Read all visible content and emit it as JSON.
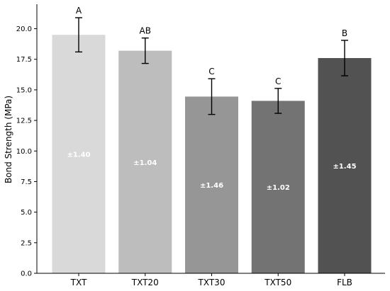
{
  "chart_data": {
    "type": "bar",
    "title": "",
    "xlabel": "",
    "ylabel": "Bond Strength (MPa)",
    "ylim": [
      0,
      22
    ],
    "yticks": [
      0.0,
      2.5,
      5.0,
      7.5,
      10.0,
      12.5,
      15.0,
      17.5,
      20.0
    ],
    "ytick_labels": [
      "0.0",
      "2.5",
      "5.0",
      "7.5",
      "10.0",
      "12.5",
      "15.0",
      "17.5",
      "20.0"
    ],
    "grid": false,
    "categories": [
      "TXT",
      "TXT20",
      "TXT30",
      "TXT50",
      "FLB"
    ],
    "values": [
      19.5,
      18.2,
      14.45,
      14.1,
      17.6
    ],
    "errors": [
      1.4,
      1.04,
      1.46,
      1.02,
      1.45
    ],
    "error_labels": [
      "±1.40",
      "±1.04",
      "±1.46",
      "±1.02",
      "±1.45"
    ],
    "significance": [
      "A",
      "AB",
      "C",
      "C",
      "B"
    ],
    "colors": [
      "#d9d9d9",
      "#bdbdbd",
      "#969696",
      "#737373",
      "#525252"
    ]
  }
}
